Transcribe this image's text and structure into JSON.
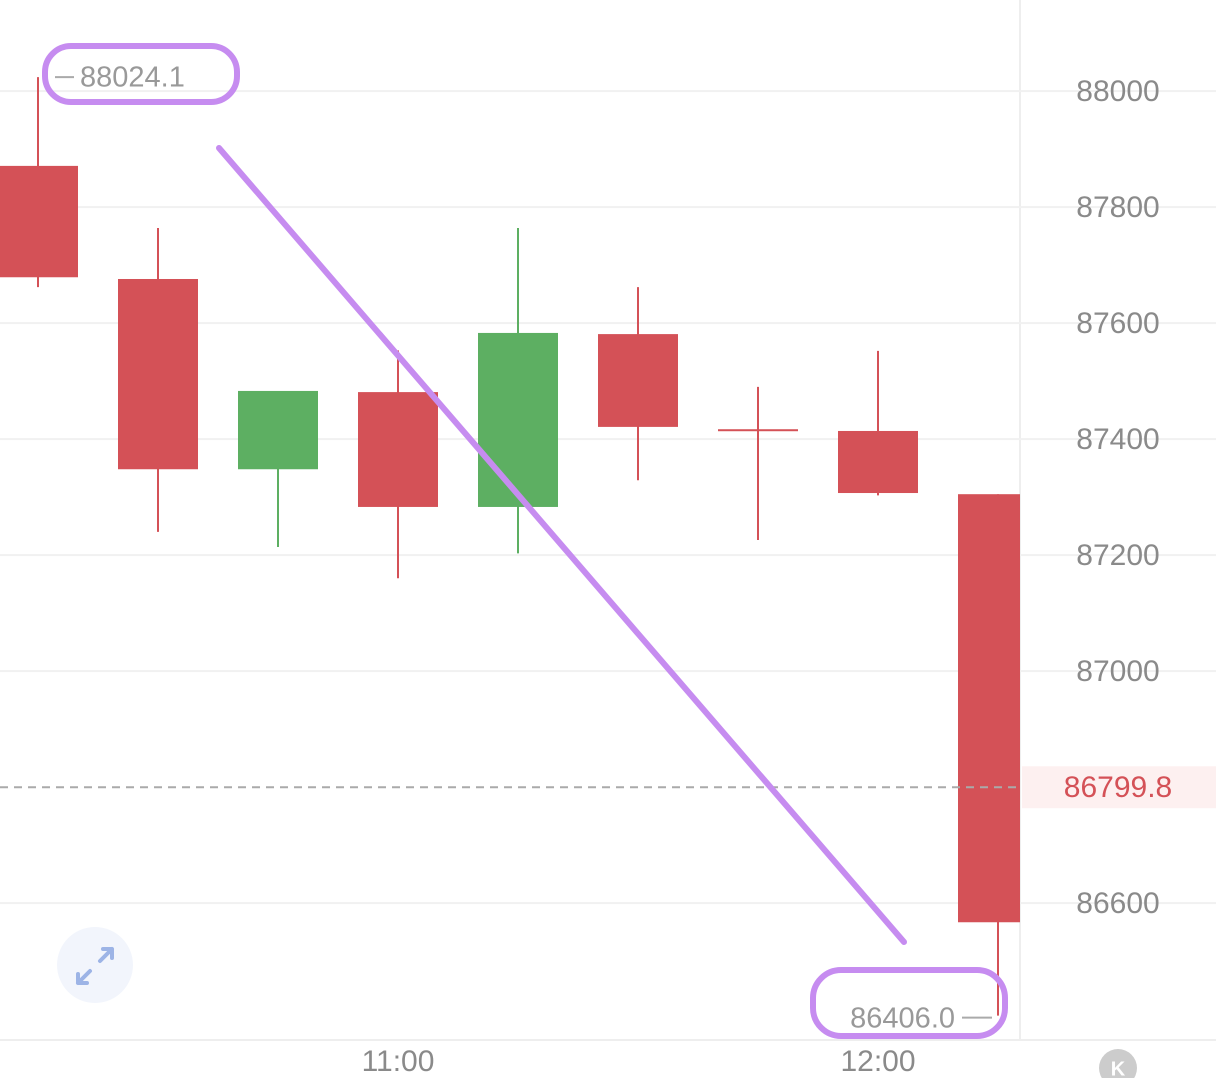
{
  "chart_data": {
    "type": "candlestick",
    "categories": [
      null,
      null,
      null,
      "11:00",
      null,
      null,
      null,
      "12:00",
      null
    ],
    "open": [
      87871,
      87676,
      87348,
      87481,
      87283,
      87581,
      87417,
      87414,
      87305
    ],
    "high": [
      88024.1,
      87764,
      87483,
      87553,
      87764,
      87662,
      87490,
      87552,
      87305
    ],
    "low": [
      87662,
      87240,
      87214,
      87160,
      87203,
      87329,
      87226,
      87303,
      86406
    ],
    "close": [
      87679,
      87348,
      87483,
      87283,
      87583,
      87421,
      87416,
      87307,
      86567
    ],
    "up_color": "#5daf62",
    "down_color": "#d45157",
    "ylim": [
      86364,
      88157
    ],
    "yticks": [
      86600,
      87000,
      87200,
      87400,
      87600,
      87800,
      88000
    ],
    "grid": true,
    "max_label": 88024.1,
    "min_label": {
      "value": 86406,
      "label": "86406.0"
    },
    "current_price": 86799.8,
    "logo_text": "K"
  }
}
